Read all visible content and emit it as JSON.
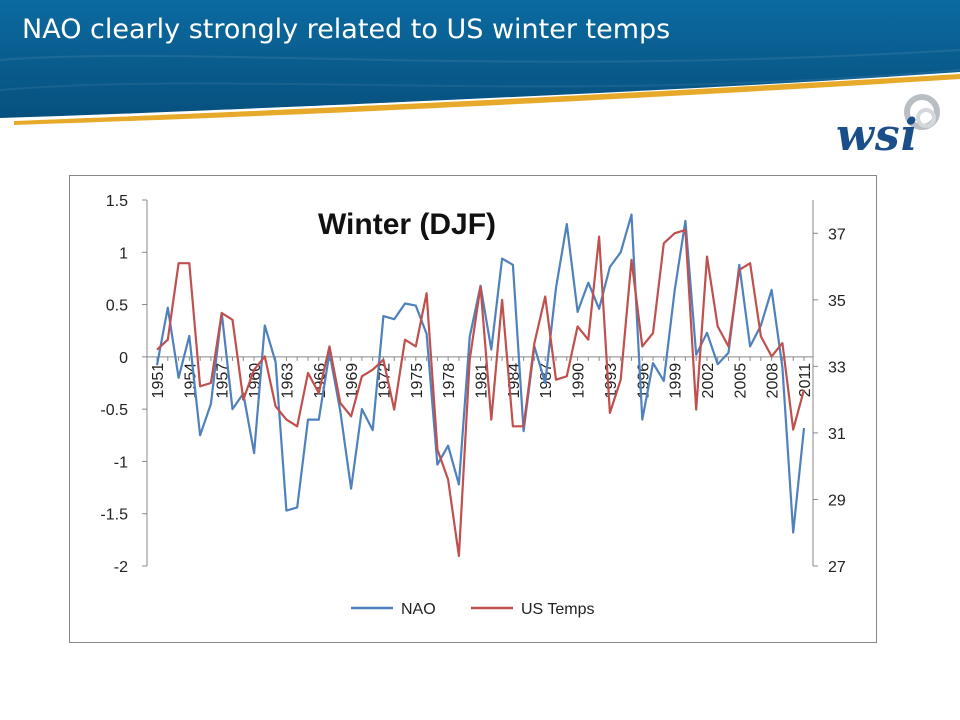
{
  "slide": {
    "title": "NAO clearly strongly related to US winter temps",
    "logo_text": "wsi"
  },
  "colors": {
    "header_blue": "#0a5c8c",
    "header_dark": "#07476f",
    "accent_gold": "#e6a92a",
    "nao": "#4f81bd",
    "us_temps": "#c0504d"
  },
  "chart_data": {
    "type": "line",
    "title": "Winter (DJF)",
    "x": [
      1951,
      1952,
      1953,
      1954,
      1955,
      1956,
      1957,
      1958,
      1959,
      1960,
      1961,
      1962,
      1963,
      1964,
      1965,
      1966,
      1967,
      1968,
      1969,
      1970,
      1971,
      1972,
      1973,
      1974,
      1975,
      1976,
      1977,
      1978,
      1979,
      1980,
      1981,
      1982,
      1983,
      1984,
      1985,
      1986,
      1987,
      1988,
      1989,
      1990,
      1991,
      1992,
      1993,
      1994,
      1995,
      1996,
      1997,
      1998,
      1999,
      2000,
      2001,
      2002,
      2003,
      2004,
      2005,
      2006,
      2007,
      2008,
      2009,
      2010,
      2011
    ],
    "x_tick_labels": [
      "1951",
      "1954",
      "1957",
      "1960",
      "1963",
      "1966",
      "1969",
      "1972",
      "1975",
      "1978",
      "1981",
      "1984",
      "1987",
      "1990",
      "1993",
      "1996",
      "1999",
      "2002",
      "2005",
      "2008",
      "2011"
    ],
    "y_left": {
      "label": "",
      "ylim": [
        -2,
        1.5
      ],
      "ticks": [
        "1.5",
        "1",
        "0.5",
        "0",
        "-0.5",
        "-1",
        "-1.5",
        "-2"
      ]
    },
    "y_right": {
      "label": "",
      "ylim": [
        27,
        38
      ],
      "ticks": [
        "37",
        "35",
        "33",
        "31",
        "29",
        "27"
      ]
    },
    "grid": false,
    "legend": {
      "placement": "bottom"
    },
    "series": [
      {
        "name": "NAO",
        "axis": "left",
        "values": [
          -0.08,
          0.47,
          -0.2,
          0.2,
          -0.75,
          -0.45,
          0.42,
          -0.5,
          -0.35,
          -0.92,
          0.3,
          -0.05,
          -1.47,
          -1.44,
          -0.6,
          -0.6,
          0.04,
          -0.52,
          -1.26,
          -0.5,
          -0.7,
          0.39,
          0.36,
          0.51,
          0.49,
          0.22,
          -1.03,
          -0.85,
          -1.22,
          0.19,
          0.68,
          0.07,
          0.94,
          0.88,
          -0.71,
          0.1,
          -0.25,
          0.66,
          1.27,
          0.43,
          0.71,
          0.46,
          0.86,
          1.0,
          1.36,
          -0.6,
          -0.06,
          -0.23,
          0.63,
          1.3,
          0.02,
          0.23,
          -0.07,
          0.04,
          0.88,
          0.1,
          0.3,
          0.64,
          -0.1,
          -1.68,
          -0.68
        ]
      },
      {
        "name": "US Temps",
        "axis": "right",
        "values": [
          33.5,
          33.8,
          36.1,
          36.1,
          32.4,
          32.5,
          34.6,
          34.4,
          32.0,
          32.9,
          33.3,
          31.8,
          31.4,
          31.2,
          32.8,
          32.2,
          33.6,
          31.9,
          31.5,
          32.7,
          32.9,
          33.2,
          31.7,
          33.8,
          33.6,
          35.2,
          30.5,
          29.6,
          27.3,
          33.2,
          35.4,
          31.4,
          35.0,
          31.2,
          31.2,
          33.7,
          35.1,
          32.6,
          32.7,
          34.2,
          33.8,
          36.9,
          31.6,
          32.6,
          36.2,
          33.6,
          34.0,
          36.7,
          37.0,
          37.1,
          31.7,
          36.3,
          34.2,
          33.6,
          35.9,
          36.1,
          33.9,
          33.3,
          33.7,
          31.1,
          32.3
        ]
      }
    ]
  }
}
